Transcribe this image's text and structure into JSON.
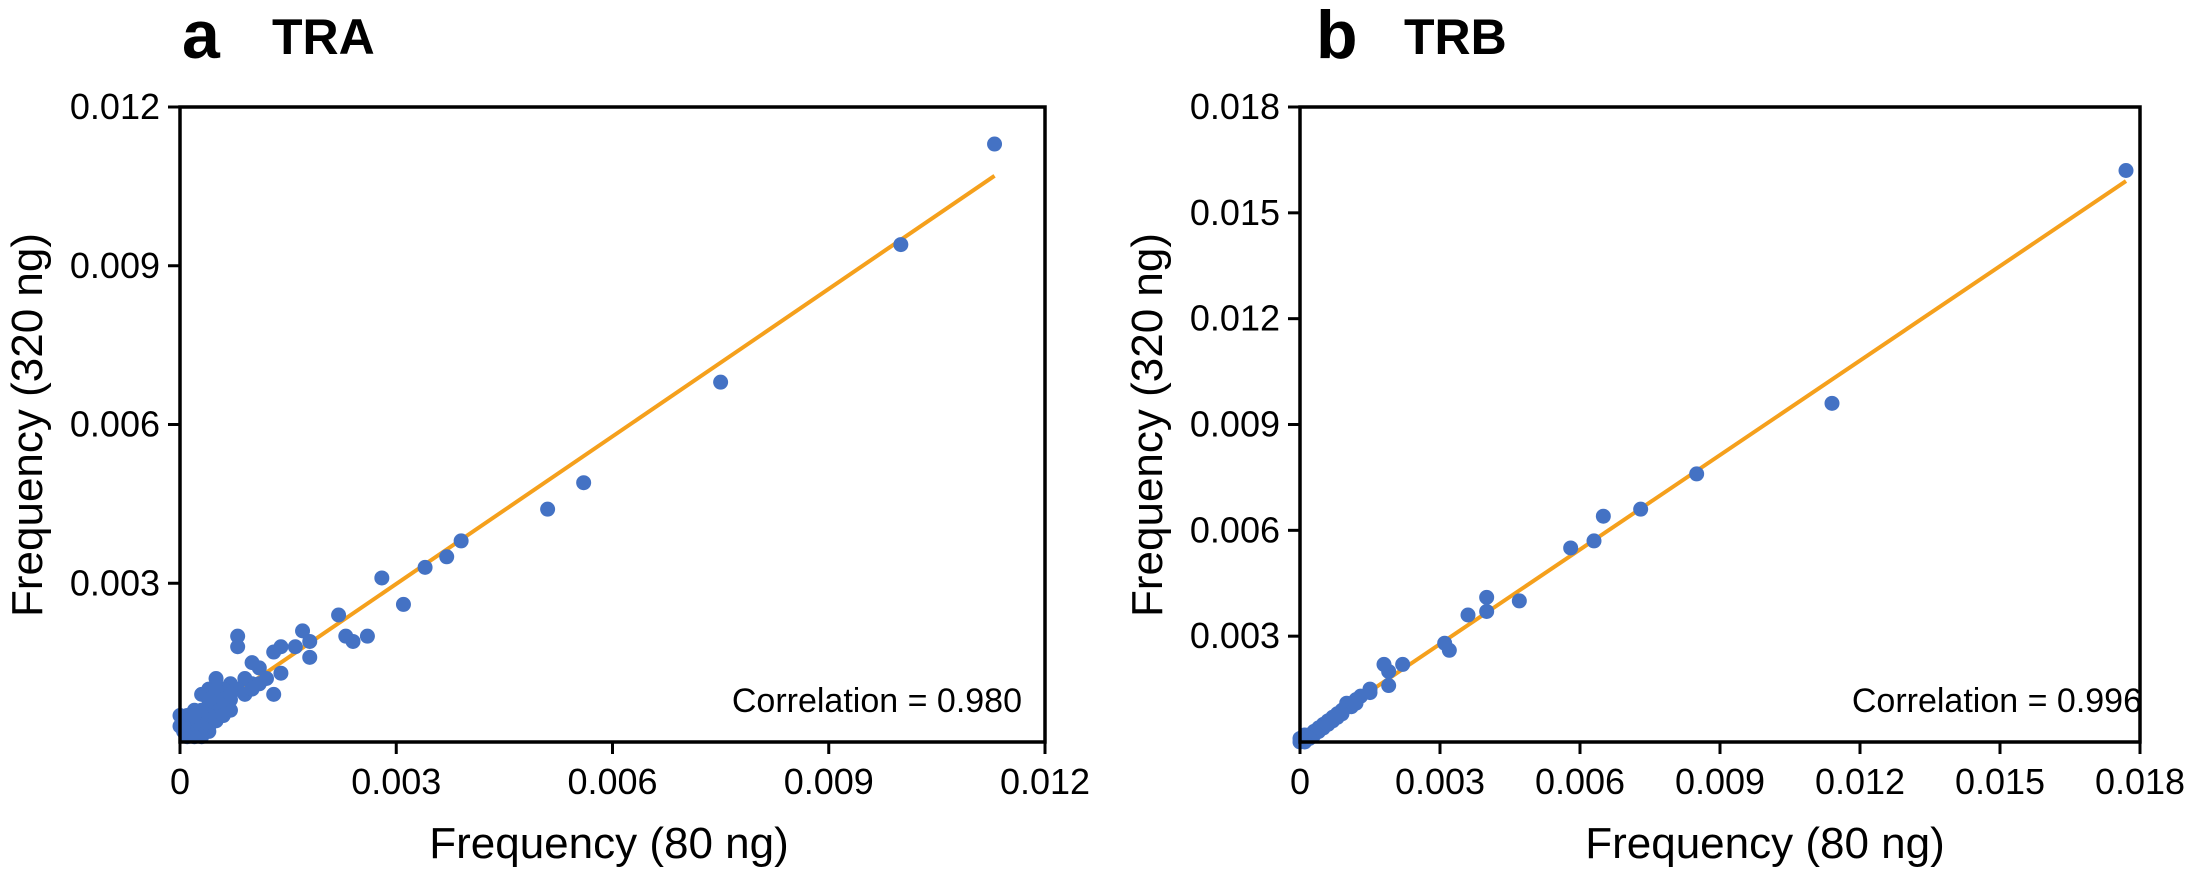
{
  "colors": {
    "points": "#4472c4",
    "fit_line": "#f5a01c",
    "frame": "#000000"
  },
  "chart_data": [
    {
      "panel": "a",
      "title": "TRA",
      "type": "scatter",
      "xlabel": "Frequency (80 ng)",
      "ylabel": "Frequency (320 ng)",
      "xlim": [
        0,
        0.012
      ],
      "ylim": [
        0,
        0.012
      ],
      "xticks": [
        0,
        0.003,
        0.006,
        0.009,
        0.012
      ],
      "xtick_labels": [
        "0",
        "0.003",
        "0.006",
        "0.009",
        "0.012"
      ],
      "yticks": [
        0.003,
        0.006,
        0.009,
        0.012
      ],
      "ytick_labels": [
        "0.003",
        "0.006",
        "0.009",
        "0.012"
      ],
      "annotation": "Correlation = 0.980",
      "fit_line": {
        "x": [
          0,
          0.0113
        ],
        "y": [
          0.0002,
          0.0107
        ]
      },
      "points": [
        [
          0.0113,
          0.0113
        ],
        [
          0.01,
          0.0094
        ],
        [
          0.0075,
          0.0068
        ],
        [
          0.0056,
          0.0049
        ],
        [
          0.0051,
          0.0044
        ],
        [
          0.0039,
          0.0038
        ],
        [
          0.0037,
          0.0035
        ],
        [
          0.0034,
          0.0033
        ],
        [
          0.0028,
          0.0031
        ],
        [
          0.0031,
          0.0026
        ],
        [
          0.0022,
          0.0024
        ],
        [
          0.0023,
          0.002
        ],
        [
          0.0024,
          0.0019
        ],
        [
          0.0026,
          0.002
        ],
        [
          0.0017,
          0.0021
        ],
        [
          0.0018,
          0.0019
        ],
        [
          0.0016,
          0.0018
        ],
        [
          0.0018,
          0.0016
        ],
        [
          0.0014,
          0.0018
        ],
        [
          0.0013,
          0.0017
        ],
        [
          0.0014,
          0.0013
        ],
        [
          0.0013,
          0.0009
        ],
        [
          0.0012,
          0.0012
        ],
        [
          0.0011,
          0.0014
        ],
        [
          0.001,
          0.0011
        ],
        [
          0.001,
          0.0015
        ],
        [
          0.0009,
          0.0012
        ],
        [
          0.0008,
          0.002
        ],
        [
          0.0008,
          0.0018
        ],
        [
          0.0008,
          0.001
        ],
        [
          0.0007,
          0.0011
        ],
        [
          0.0007,
          0.0008
        ],
        [
          0.0006,
          0.001
        ],
        [
          0.0006,
          0.0007
        ],
        [
          0.0006,
          0.0009
        ],
        [
          0.0005,
          0.0012
        ],
        [
          0.0005,
          0.0008
        ],
        [
          0.0005,
          0.0006
        ],
        [
          0.0005,
          0.0004
        ],
        [
          0.0004,
          0.001
        ],
        [
          0.0004,
          0.0007
        ],
        [
          0.0004,
          0.0005
        ],
        [
          0.0004,
          0.0003
        ],
        [
          0.0004,
          0.0002
        ],
        [
          0.0003,
          0.0009
        ],
        [
          0.0003,
          0.0006
        ],
        [
          0.0003,
          0.0004
        ],
        [
          0.0003,
          0.0003
        ],
        [
          0.0003,
          0.0001
        ],
        [
          0.0002,
          0.0006
        ],
        [
          0.0002,
          0.0004
        ],
        [
          0.0002,
          0.0003
        ],
        [
          0.0002,
          0.0002
        ],
        [
          0.0002,
          0.0001
        ],
        [
          0.0001,
          0.0005
        ],
        [
          0.0001,
          0.0004
        ],
        [
          0.0001,
          0.0003
        ],
        [
          0.0001,
          0.0002
        ],
        [
          0.0001,
          0.0001
        ],
        [
          5e-05,
          0.0004
        ],
        [
          5e-05,
          0.0003
        ],
        [
          5e-05,
          0.0002
        ],
        [
          0.0,
          0.0005
        ],
        [
          0.0,
          0.0003
        ],
        [
          0.0006,
          0.0005
        ],
        [
          0.0007,
          0.0006
        ],
        [
          0.0009,
          0.0009
        ],
        [
          0.001,
          0.001
        ],
        [
          0.0011,
          0.0011
        ],
        [
          0.0005,
          0.001
        ],
        [
          0.0004,
          0.0008
        ],
        [
          0.0003,
          0.0005
        ],
        [
          0.0002,
          0.0005
        ],
        [
          0.0006,
          0.0008
        ],
        [
          0.0007,
          0.0009
        ]
      ]
    },
    {
      "panel": "b",
      "title": "TRB",
      "type": "scatter",
      "xlabel": "Frequency (80 ng)",
      "ylabel": "Frequency (320 ng)",
      "xlim": [
        0,
        0.018
      ],
      "ylim": [
        0,
        0.018
      ],
      "xticks": [
        0,
        0.003,
        0.006,
        0.009,
        0.012,
        0.015,
        0.018
      ],
      "xtick_labels": [
        "0",
        "0.003",
        "0.006",
        "0.009",
        "0.012",
        "0.015",
        "0.018"
      ],
      "yticks": [
        0.003,
        0.006,
        0.009,
        0.012,
        0.015,
        0.018
      ],
      "ytick_labels": [
        "0.003",
        "0.006",
        "0.009",
        "0.012",
        "0.015",
        "0.018"
      ],
      "annotation": "Correlation = 0.996",
      "fit_line": {
        "x": [
          0,
          0.0177
        ],
        "y": [
          0.0001,
          0.0159
        ]
      },
      "points": [
        [
          0.0177,
          0.0162
        ],
        [
          0.0114,
          0.0096
        ],
        [
          0.0085,
          0.0076
        ],
        [
          0.0073,
          0.0066
        ],
        [
          0.0065,
          0.0064
        ],
        [
          0.0063,
          0.0057
        ],
        [
          0.0058,
          0.0055
        ],
        [
          0.0047,
          0.004
        ],
        [
          0.004,
          0.0041
        ],
        [
          0.004,
          0.0037
        ],
        [
          0.0036,
          0.0036
        ],
        [
          0.0032,
          0.0026
        ],
        [
          0.0031,
          0.0028
        ],
        [
          0.0022,
          0.0022
        ],
        [
          0.0019,
          0.0016
        ],
        [
          0.0019,
          0.002
        ],
        [
          0.0018,
          0.0022
        ],
        [
          0.0015,
          0.0015
        ],
        [
          0.0013,
          0.0013
        ],
        [
          0.0012,
          0.0012
        ],
        [
          0.0011,
          0.001
        ],
        [
          0.001,
          0.0011
        ],
        [
          0.0009,
          0.0009
        ],
        [
          0.0008,
          0.0008
        ],
        [
          0.0007,
          0.0007
        ],
        [
          0.0007,
          0.0006
        ],
        [
          0.0006,
          0.0006
        ],
        [
          0.0005,
          0.0005
        ],
        [
          0.0005,
          0.0004
        ],
        [
          0.0004,
          0.0004
        ],
        [
          0.0004,
          0.0003
        ],
        [
          0.0003,
          0.0003
        ],
        [
          0.0003,
          0.0002
        ],
        [
          0.0002,
          0.0002
        ],
        [
          0.0002,
          0.0001
        ],
        [
          0.0001,
          0.0001
        ],
        [
          0.0001,
          0.0002
        ],
        [
          0.0,
          0.0001
        ],
        [
          0.0,
          0.0
        ],
        [
          0.0001,
          0.0
        ],
        [
          0.0006,
          0.0005
        ],
        [
          0.0009,
          0.0008
        ],
        [
          0.0012,
          0.0011
        ],
        [
          0.0015,
          0.0014
        ],
        [
          0.0008,
          0.0007
        ]
      ]
    }
  ]
}
